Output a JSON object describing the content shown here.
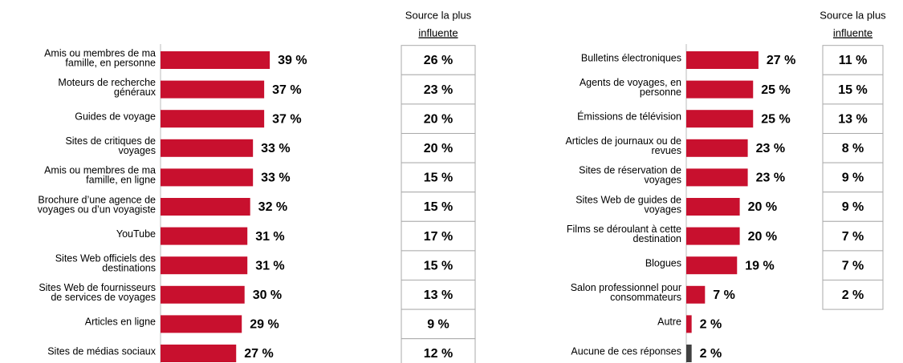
{
  "chart_data": [
    {
      "type": "bar",
      "categories": [
        [
          "Amis ou membres de ma",
          "famille, en personne"
        ],
        [
          "Moteurs de recherche",
          "généraux"
        ],
        [
          "Guides de voyage"
        ],
        [
          "Sites de critiques de",
          "voyages"
        ],
        [
          "Amis ou membres de ma",
          "famille, en ligne"
        ],
        [
          "Brochure d’une agence de",
          "voyages ou d’un voyagiste"
        ],
        [
          "YouTube"
        ],
        [
          "Sites Web officiels des",
          "destinations"
        ],
        [
          "Sites Web de fournisseurs",
          "de services de voyages"
        ],
        [
          "Articles en ligne"
        ],
        [
          "Sites de médias sociaux"
        ]
      ],
      "values": [
        39,
        37,
        37,
        33,
        33,
        32,
        31,
        31,
        30,
        29,
        27
      ],
      "value_labels": [
        "39 %",
        "37 %",
        "37 %",
        "33 %",
        "33 %",
        "32 %",
        "31 %",
        "31 %",
        "30 %",
        "29 %",
        "27 %"
      ],
      "colors": [
        "#c8102e",
        "#c8102e",
        "#c8102e",
        "#c8102e",
        "#c8102e",
        "#c8102e",
        "#c8102e",
        "#c8102e",
        "#c8102e",
        "#c8102e",
        "#c8102e"
      ],
      "table": {
        "title": [
          "Source la plus",
          "influente"
        ],
        "values": [
          26,
          23,
          20,
          20,
          15,
          15,
          17,
          15,
          13,
          9,
          12
        ],
        "value_labels": [
          "26 %",
          "23 %",
          "20 %",
          "20 %",
          "15 %",
          "15 %",
          "17 %",
          "15 %",
          "13 %",
          "9 %",
          "12 %"
        ],
        "colors": [
          "#c8102e",
          "#c8102e",
          "#c8102e",
          "#c8102e",
          "#000000",
          "#000000",
          "#c8102e",
          "#000000",
          "#000000",
          "#000000",
          "#000000"
        ]
      }
    },
    {
      "type": "bar",
      "categories": [
        [
          "Bulletins électroniques"
        ],
        [
          "Agents de voyages, en",
          "personne"
        ],
        [
          "Émissions de télévision"
        ],
        [
          "Articles de journaux ou de",
          "revues"
        ],
        [
          "Sites de réservation de",
          "voyages"
        ],
        [
          "Sites Web de guides de",
          "voyages"
        ],
        [
          "Films se déroulant à cette",
          "destination"
        ],
        [
          "Blogues"
        ],
        [
          "Salon professionnel pour",
          "consommateurs"
        ],
        [
          "Autre"
        ],
        [
          "Aucune de ces réponses"
        ]
      ],
      "values": [
        27,
        25,
        25,
        23,
        23,
        20,
        20,
        19,
        7,
        2,
        2
      ],
      "value_labels": [
        "27 %",
        "25 %",
        "25 %",
        "23 %",
        "23 %",
        "20 %",
        "20 %",
        "19 %",
        "7 %",
        "2 %",
        "2 %"
      ],
      "colors": [
        "#c8102e",
        "#c8102e",
        "#c8102e",
        "#c8102e",
        "#c8102e",
        "#c8102e",
        "#c8102e",
        "#c8102e",
        "#c8102e",
        "#c8102e",
        "#404040"
      ],
      "table": {
        "title": [
          "Source la plus",
          "influente"
        ],
        "values": [
          11,
          15,
          13,
          8,
          9,
          9,
          7,
          7,
          2
        ],
        "value_labels": [
          "11 %",
          "15 %",
          "13 %",
          "8 %",
          "9 %",
          "9 %",
          "7 %",
          "7 %",
          "2 %"
        ],
        "colors": [
          "#000000",
          "#000000",
          "#000000",
          "#000000",
          "#000000",
          "#000000",
          "#000000",
          "#000000",
          "#000000"
        ]
      }
    }
  ]
}
